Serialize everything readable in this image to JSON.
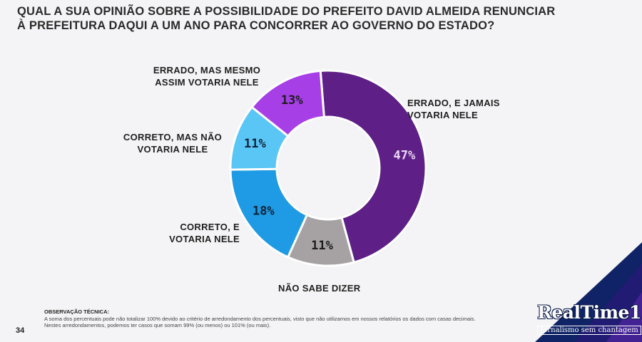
{
  "title_lines": [
    "QUAL A SUA OPINIÃO SOBRE A POSSIBILIDADE DO PREFEITO DAVID ALMEIDA RENUNCIAR",
    "À PREFEITURA DAQUI A UM ANO PARA CONCORRER AO GOVERNO DO ESTADO?"
  ],
  "chart_data": {
    "type": "pie",
    "donut": true,
    "title": "QUAL A SUA OPINIÃO SOBRE A POSSIBILIDADE DO PREFEITO DAVID ALMEIDA RENUNCIAR À PREFEITURA DAQUI A UM ANO PARA CONCORRER AO GOVERNO DO ESTADO?",
    "slices": [
      {
        "label_lines": [
          "ERRADO, E JAMAIS",
          "VOTARIA NELE"
        ],
        "value": 47,
        "display": "47%",
        "color": "#5e1f86",
        "text_color": "#e9d8f7"
      },
      {
        "label_lines": [
          "NÃO SABE DIZER"
        ],
        "value": 11,
        "display": "11%",
        "color": "#a6a2a4",
        "text_color": "#1c1c1c"
      },
      {
        "label_lines": [
          "CORRETO, E",
          "VOTARIA NELE"
        ],
        "value": 18,
        "display": "18%",
        "color": "#1e9be4",
        "text_color": "#10233a"
      },
      {
        "label_lines": [
          "CORRETO, MAS NÃO",
          "VOTARIA NELE"
        ],
        "value": 11,
        "display": "11%",
        "color": "#59c6f5",
        "text_color": "#10233a"
      },
      {
        "label_lines": [
          "ERRADO, MAS MESMO",
          "ASSIM VOTARIA NELE"
        ],
        "value": 13,
        "display": "13%",
        "color": "#a73fe6",
        "text_color": "#1c1c1c"
      }
    ]
  },
  "note": {
    "heading": "OBSERVAÇÃO TÉCNICA:",
    "lines": [
      "A soma dos percentuais pode não totalizar 100% devido ao critério de arredondamento dos percentuais, visto que não utilizamos em nossos relatórios os dados com casas decimais.",
      "Nestes arredondamentos, podemos ter casos que somam 99% (ou menos) ou 101% (ou mais)."
    ]
  },
  "page_number": "34",
  "brand": {
    "name": "RealTime1",
    "tagline": "Jornalismo sem chantagem"
  }
}
